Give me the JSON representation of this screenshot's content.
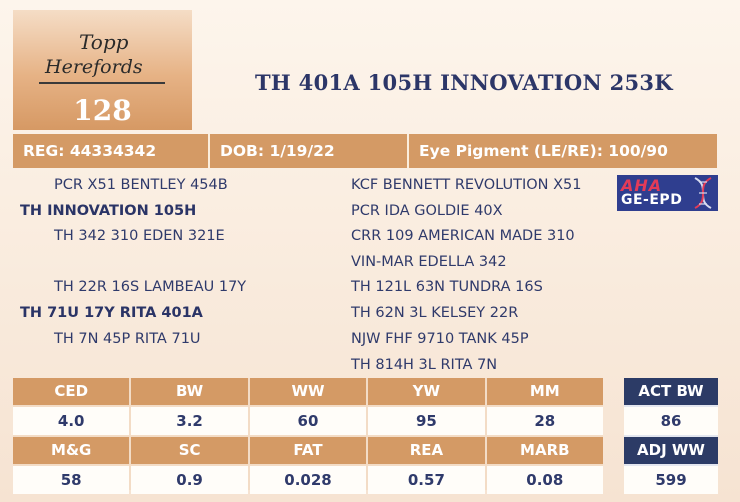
{
  "logo": {
    "line1": "Topp",
    "line2": "Herefords"
  },
  "lot_number": "128",
  "bull_name": "TH 401A 105H INNOVATION 253K",
  "info": {
    "reg": "REG: 44334342",
    "dob": "DOB: 1/19/22",
    "eye_pigment": "Eye Pigment (LE/RE): 100/90"
  },
  "pedigree": {
    "sire": "TH INNOVATION 105H",
    "sire_sire": "PCR X51 BENTLEY 454B",
    "sire_dam": "TH 342 310 EDEN 321E",
    "dam": "TH 71U 17Y RITA 401A",
    "dam_sire": "TH 22R 16S LAMBEAU 17Y",
    "dam_dam": "TH 7N 45P RITA 71U",
    "right_column": [
      "KCF BENNETT REVOLUTION X51",
      "PCR IDA GOLDIE 40X",
      "CRR 109 AMERICAN MADE 310",
      "VIN-MAR EDELLA 342",
      "TH 121L 63N TUNDRA 16S",
      "TH 62N 3L KELSEY 22R",
      "NJW FHF 9710 TANK 45P",
      "TH 814H 3L RITA 7N"
    ]
  },
  "badge": {
    "line1": "AHA",
    "line2": "GE-EPD"
  },
  "epd_row1": {
    "headers": [
      "CED",
      "BW",
      "WW",
      "YW",
      "MM"
    ],
    "values": [
      "4.0",
      "3.2",
      "60",
      "95",
      "28"
    ]
  },
  "epd_row2": {
    "headers": [
      "M&G",
      "SC",
      "FAT",
      "REA",
      "MARB"
    ],
    "values": [
      "58",
      "0.9",
      "0.028",
      "0.57",
      "0.08"
    ]
  },
  "actual": {
    "act_bw_label": "ACT BW",
    "act_bw_value": "86",
    "adj_ww_label": "ADJ WW",
    "adj_ww_value": "599"
  },
  "colors": {
    "accent_tan": "#d49a65",
    "navy": "#2c3b66",
    "text_blue": "#2f3a6b"
  }
}
